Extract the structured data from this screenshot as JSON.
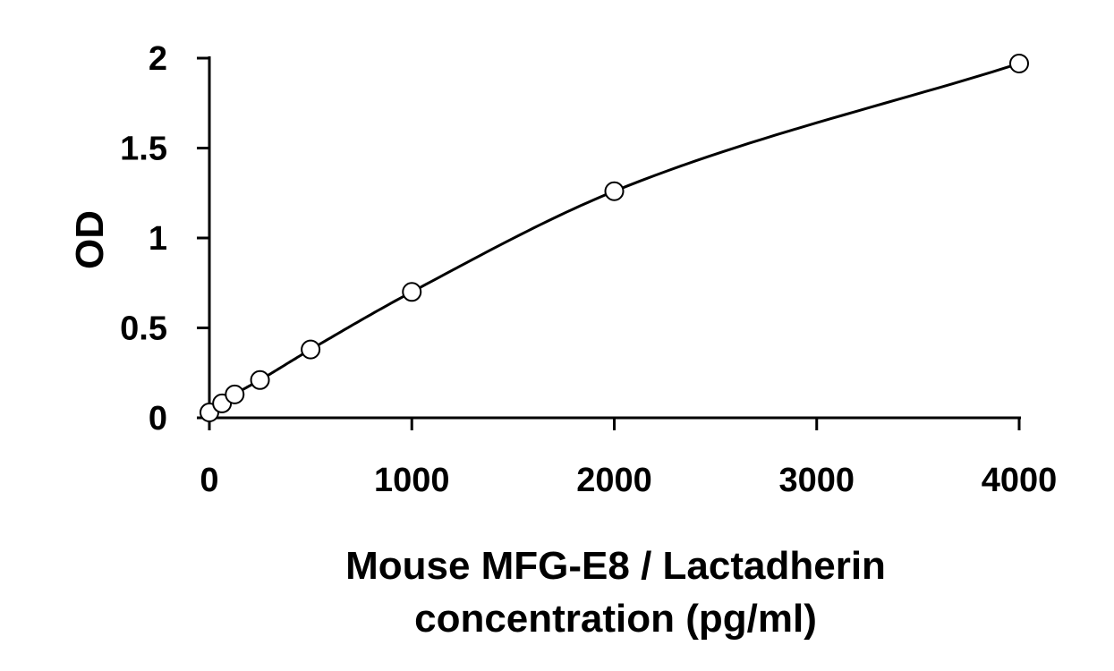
{
  "chart_data": {
    "type": "scatter",
    "title": "",
    "xlabel": [
      "Mouse MFG-E8 / Lactadherin",
      "concentration (pg/ml)"
    ],
    "ylabel": "OD",
    "xlim": [
      0,
      4000
    ],
    "ylim": [
      0,
      2
    ],
    "xticks": [
      0,
      1000,
      2000,
      3000,
      4000
    ],
    "yticks": [
      0,
      0.5,
      1,
      1.5,
      2
    ],
    "ytick_labels": [
      "0",
      "0.5",
      "1",
      "1.5",
      "2"
    ],
    "grid": false,
    "legend": "none",
    "series": [
      {
        "x": [
          0,
          62.5,
          125,
          250,
          500,
          1000,
          2000,
          4000
        ],
        "y": [
          0.03,
          0.08,
          0.13,
          0.21,
          0.38,
          0.7,
          1.26,
          1.97
        ],
        "marker": "open-circle",
        "fit_line": true
      }
    ],
    "colors": {
      "axis": "#000000",
      "line": "#000000",
      "marker_fill": "#ffffff"
    }
  }
}
